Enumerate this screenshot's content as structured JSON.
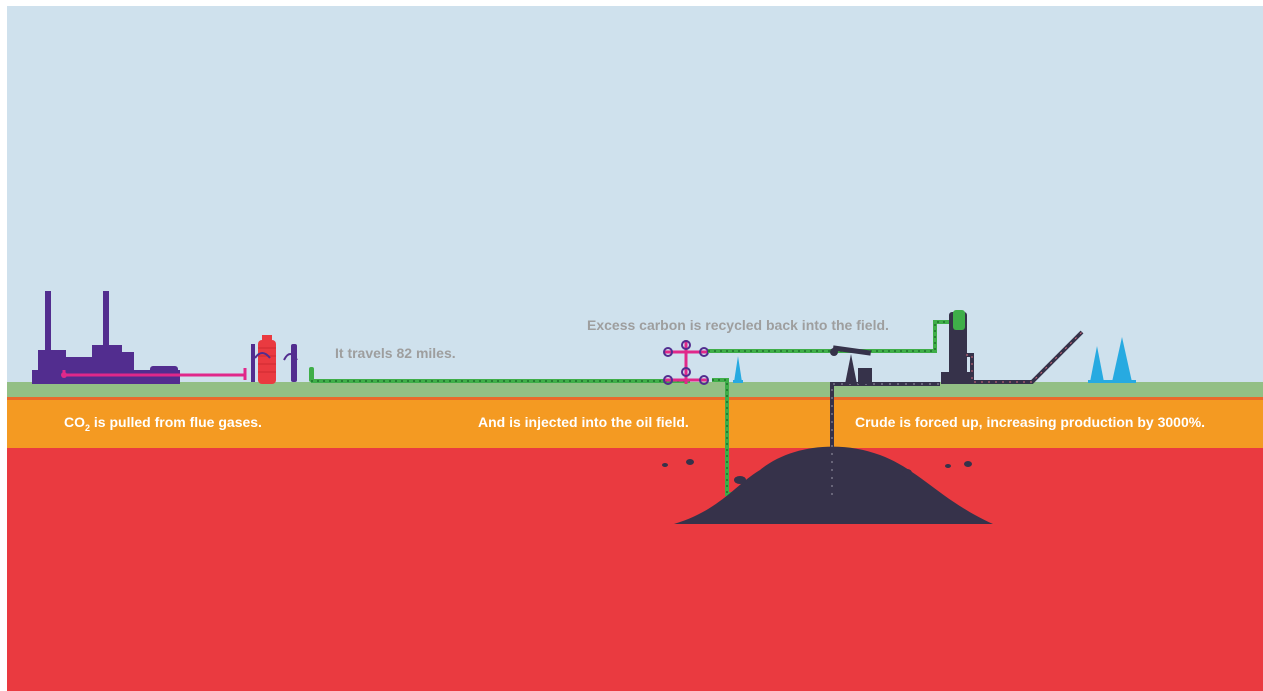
{
  "labels": {
    "travels": "It travels 82 miles.",
    "excess": "Excess carbon is recycled back into the field.",
    "pulled_prefix": "CO",
    "pulled_sub": "2",
    "pulled_suffix": " is pulled from flue gases.",
    "injected": "And is injected into the oil field.",
    "crude": "Crude is forced up, increasing production by 3000%."
  },
  "colors": {
    "sky": "#cfe1ed",
    "ground": "#93bf85",
    "sand": "#f49a22",
    "rock": "#ea3a40",
    "oil": "#36324a",
    "plant": "#522d8f",
    "pipe_pink": "#e0288a",
    "pipe_green": "#3fae49",
    "tank_red": "#ea3a40",
    "rig_blue": "#27aae1"
  },
  "icons": [
    "power-plant-icon",
    "capture-unit-icon",
    "wellhead-icon",
    "pumpjack-icon",
    "separator-tower-icon",
    "oil-derrick-icon",
    "oil-reservoir-icon"
  ]
}
